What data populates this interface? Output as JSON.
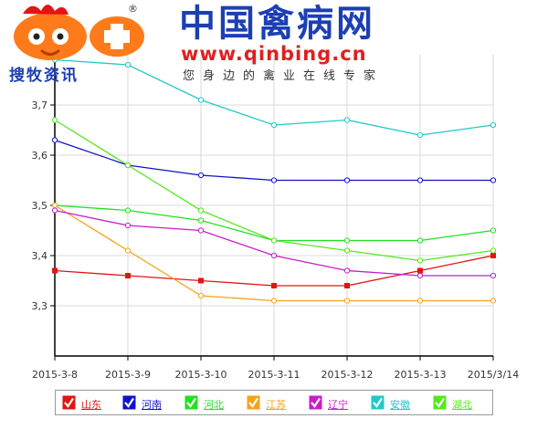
{
  "header": {
    "logo_name": "搜牧资讯",
    "logo_registered": "®",
    "site_title": "中国禽病网",
    "site_url": "www.qinbing.cn",
    "site_slogan": "您身边的禽业在线专家"
  },
  "colors": {
    "background": "#ffffff",
    "axis": "#000000",
    "grid": "#d9d9d9",
    "shandong": "#e31414",
    "henan": "#1212c8",
    "hebei": "#22e022",
    "jiangsu": "#f5a21b",
    "liaoning": "#c81ec8",
    "anhui": "#22c8c8",
    "hubei": "#55e81c"
  },
  "chart_data": {
    "type": "line",
    "title": "",
    "xlabel": "",
    "ylabel": "",
    "categories": [
      "2015-3-8",
      "2015-3-9",
      "2015-3-10",
      "2015-3-11",
      "2015-3-12",
      "2015-3-13",
      "2015/3/14"
    ],
    "ylim": [
      3.2,
      3.8
    ],
    "yticks": [
      "3,3",
      "3,4",
      "3,5",
      "3,6",
      "3,7"
    ],
    "ytick_values": [
      3.3,
      3.4,
      3.5,
      3.6,
      3.7
    ],
    "grid": true,
    "legend_position": "bottom",
    "series": [
      {
        "name": "山东",
        "color": "#e31414",
        "marker": "square",
        "values": [
          3.37,
          3.36,
          3.35,
          3.34,
          3.34,
          3.37,
          3.4
        ]
      },
      {
        "name": "河南",
        "color": "#1212c8",
        "marker": "circle",
        "values": [
          3.63,
          3.58,
          3.56,
          3.55,
          3.55,
          3.55,
          3.55
        ]
      },
      {
        "name": "河北",
        "color": "#22e022",
        "marker": "circle",
        "values": [
          3.5,
          3.49,
          3.47,
          3.43,
          3.43,
          3.43,
          3.45
        ]
      },
      {
        "name": "江苏",
        "color": "#f5a21b",
        "marker": "circle",
        "values": [
          3.5,
          3.41,
          3.32,
          3.31,
          3.31,
          3.31,
          3.31
        ]
      },
      {
        "name": "辽宁",
        "color": "#c81ec8",
        "marker": "circle",
        "values": [
          3.49,
          3.46,
          3.45,
          3.4,
          3.37,
          3.36,
          3.36
        ]
      },
      {
        "name": "安徽",
        "color": "#22c8c8",
        "marker": "circle",
        "values": [
          3.79,
          3.78,
          3.71,
          3.66,
          3.67,
          3.64,
          3.66
        ]
      },
      {
        "name": "湖北",
        "color": "#55e81c",
        "marker": "circle",
        "values": [
          3.67,
          3.58,
          3.49,
          3.43,
          3.41,
          3.39,
          3.41
        ]
      }
    ]
  }
}
